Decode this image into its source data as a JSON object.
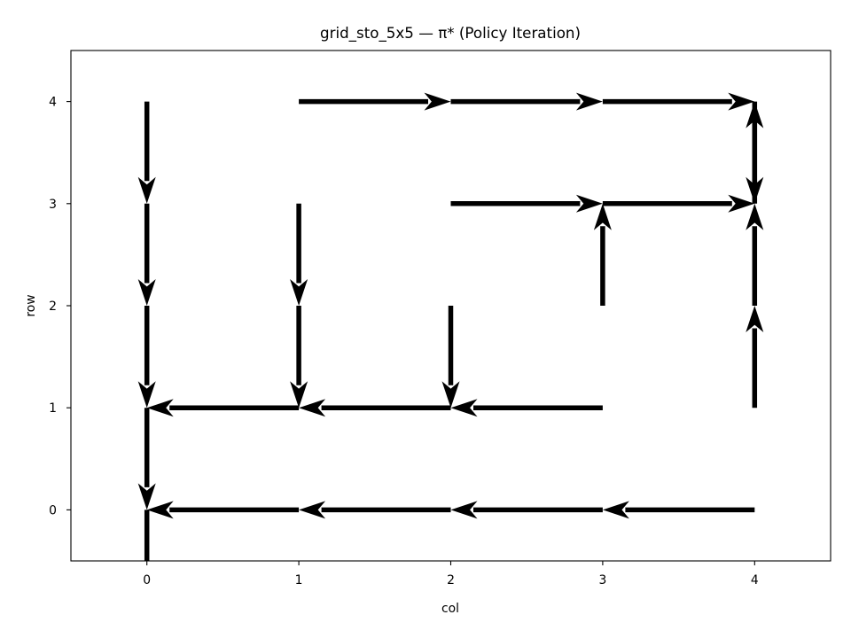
{
  "chart_data": {
    "type": "quiver",
    "title": "grid_sto_5x5 — π* (Policy Iteration)",
    "xlabel": "col",
    "ylabel": "row",
    "xlim": [
      -0.5,
      4.5
    ],
    "ylim": [
      -0.5,
      4.5
    ],
    "xticks": [
      0,
      1,
      2,
      3,
      4
    ],
    "yticks": [
      0,
      1,
      2,
      3,
      4
    ],
    "grid": false,
    "arrow_color": "#000000",
    "arrows": [
      {
        "col": 0,
        "row": 4,
        "action": "down",
        "dx": 0,
        "dy": -1
      },
      {
        "col": 1,
        "row": 4,
        "action": "right",
        "dx": 1,
        "dy": 0
      },
      {
        "col": 2,
        "row": 4,
        "action": "right",
        "dx": 1,
        "dy": 0
      },
      {
        "col": 3,
        "row": 4,
        "action": "right",
        "dx": 1,
        "dy": 0
      },
      {
        "col": 4,
        "row": 4,
        "action": "down",
        "dx": 0,
        "dy": -1
      },
      {
        "col": 0,
        "row": 3,
        "action": "down",
        "dx": 0,
        "dy": -1
      },
      {
        "col": 1,
        "row": 3,
        "action": "down",
        "dx": 0,
        "dy": -1
      },
      {
        "col": 2,
        "row": 3,
        "action": "right",
        "dx": 1,
        "dy": 0
      },
      {
        "col": 3,
        "row": 3,
        "action": "right",
        "dx": 1,
        "dy": 0
      },
      {
        "col": 4,
        "row": 3,
        "action": "up",
        "dx": 0,
        "dy": 1
      },
      {
        "col": 0,
        "row": 2,
        "action": "down",
        "dx": 0,
        "dy": -1
      },
      {
        "col": 1,
        "row": 2,
        "action": "down",
        "dx": 0,
        "dy": -1
      },
      {
        "col": 2,
        "row": 2,
        "action": "down",
        "dx": 0,
        "dy": -1
      },
      {
        "col": 3,
        "row": 2,
        "action": "up",
        "dx": 0,
        "dy": 1
      },
      {
        "col": 4,
        "row": 2,
        "action": "up",
        "dx": 0,
        "dy": 1
      },
      {
        "col": 0,
        "row": 1,
        "action": "down",
        "dx": 0,
        "dy": -1
      },
      {
        "col": 1,
        "row": 1,
        "action": "left",
        "dx": -1,
        "dy": 0
      },
      {
        "col": 2,
        "row": 1,
        "action": "left",
        "dx": -1,
        "dy": 0
      },
      {
        "col": 3,
        "row": 1,
        "action": "left",
        "dx": -1,
        "dy": 0
      },
      {
        "col": 4,
        "row": 1,
        "action": "up",
        "dx": 0,
        "dy": 1
      },
      {
        "col": 0,
        "row": 0,
        "action": "down",
        "dx": 0,
        "dy": -1
      },
      {
        "col": 1,
        "row": 0,
        "action": "left",
        "dx": -1,
        "dy": 0
      },
      {
        "col": 2,
        "row": 0,
        "action": "left",
        "dx": -1,
        "dy": 0
      },
      {
        "col": 3,
        "row": 0,
        "action": "left",
        "dx": -1,
        "dy": 0
      },
      {
        "col": 4,
        "row": 0,
        "action": "left",
        "dx": -1,
        "dy": 0
      }
    ]
  }
}
